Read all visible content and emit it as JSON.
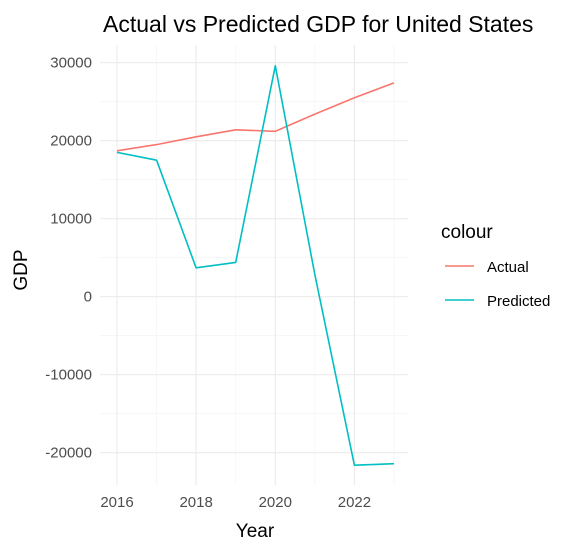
{
  "chart_data": {
    "type": "line",
    "title": "Actual vs Predicted GDP for United States",
    "xlabel": "Year",
    "ylabel": "GDP",
    "x": [
      2016,
      2017,
      2018,
      2019,
      2020,
      2021,
      2022,
      2023
    ],
    "x_ticks": [
      2016,
      2018,
      2020,
      2022
    ],
    "y_ticks": [
      -20000,
      -10000,
      0,
      10000,
      20000,
      30000
    ],
    "xlim": [
      2016,
      2023
    ],
    "ylim": [
      -21700,
      29700
    ],
    "grid": true,
    "legend_position": "right",
    "legend_title": "colour",
    "series": [
      {
        "name": "Actual",
        "color": "#F8766D",
        "values": [
          18700,
          19500,
          20500,
          21400,
          21200,
          23400,
          25500,
          27400
        ]
      },
      {
        "name": "Predicted",
        "color": "#00BFC4",
        "values": [
          18500,
          17500,
          3700,
          4400,
          29600,
          2800,
          -21600,
          -21400
        ]
      }
    ]
  }
}
